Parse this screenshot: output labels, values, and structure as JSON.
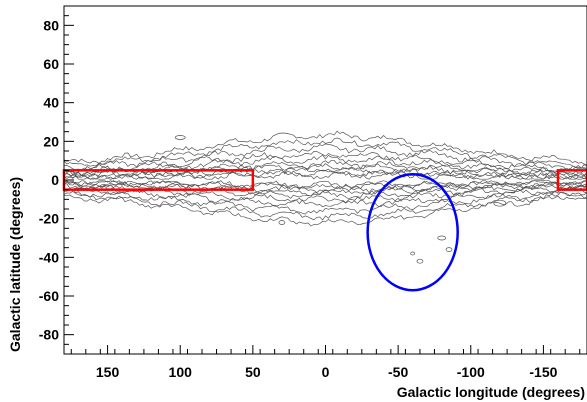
{
  "chart_data": {
    "type": "contour",
    "xlabel": "Galactic longitude (degrees)",
    "ylabel": "Galactic latitude (degrees)",
    "xlim": [
      180,
      -180
    ],
    "ylim": [
      -90,
      90
    ],
    "x_ticks": [
      {
        "value": 150,
        "label": "150"
      },
      {
        "value": 100,
        "label": "100"
      },
      {
        "value": 50,
        "label": "50"
      },
      {
        "value": 0,
        "label": "0"
      },
      {
        "value": -50,
        "label": "-50"
      },
      {
        "value": -100,
        "label": "-100"
      },
      {
        "value": -150,
        "label": "-150"
      }
    ],
    "y_ticks": [
      {
        "value": 80,
        "label": "80"
      },
      {
        "value": 60,
        "label": "60"
      },
      {
        "value": 40,
        "label": "40"
      },
      {
        "value": 20,
        "label": "20"
      },
      {
        "value": 0,
        "label": "0"
      },
      {
        "value": -20,
        "label": "-20"
      },
      {
        "value": -40,
        "label": "-40"
      },
      {
        "value": -60,
        "label": "-60"
      },
      {
        "value": -80,
        "label": "-80"
      }
    ],
    "regions": [
      {
        "shape": "rectangle",
        "color": "#ff0000",
        "l_min": 50,
        "l_max": 180,
        "b_min": -5,
        "b_max": 5
      },
      {
        "shape": "rectangle",
        "color": "#ff0000",
        "l_min": -180,
        "l_max": -160,
        "b_min": -5,
        "b_max": 5
      },
      {
        "shape": "ellipse",
        "color": "#0000ff",
        "l_center": -60,
        "b_center": -27,
        "l_radius": 31,
        "b_radius": 30
      }
    ],
    "contour_color": "#555555",
    "grid": false
  }
}
